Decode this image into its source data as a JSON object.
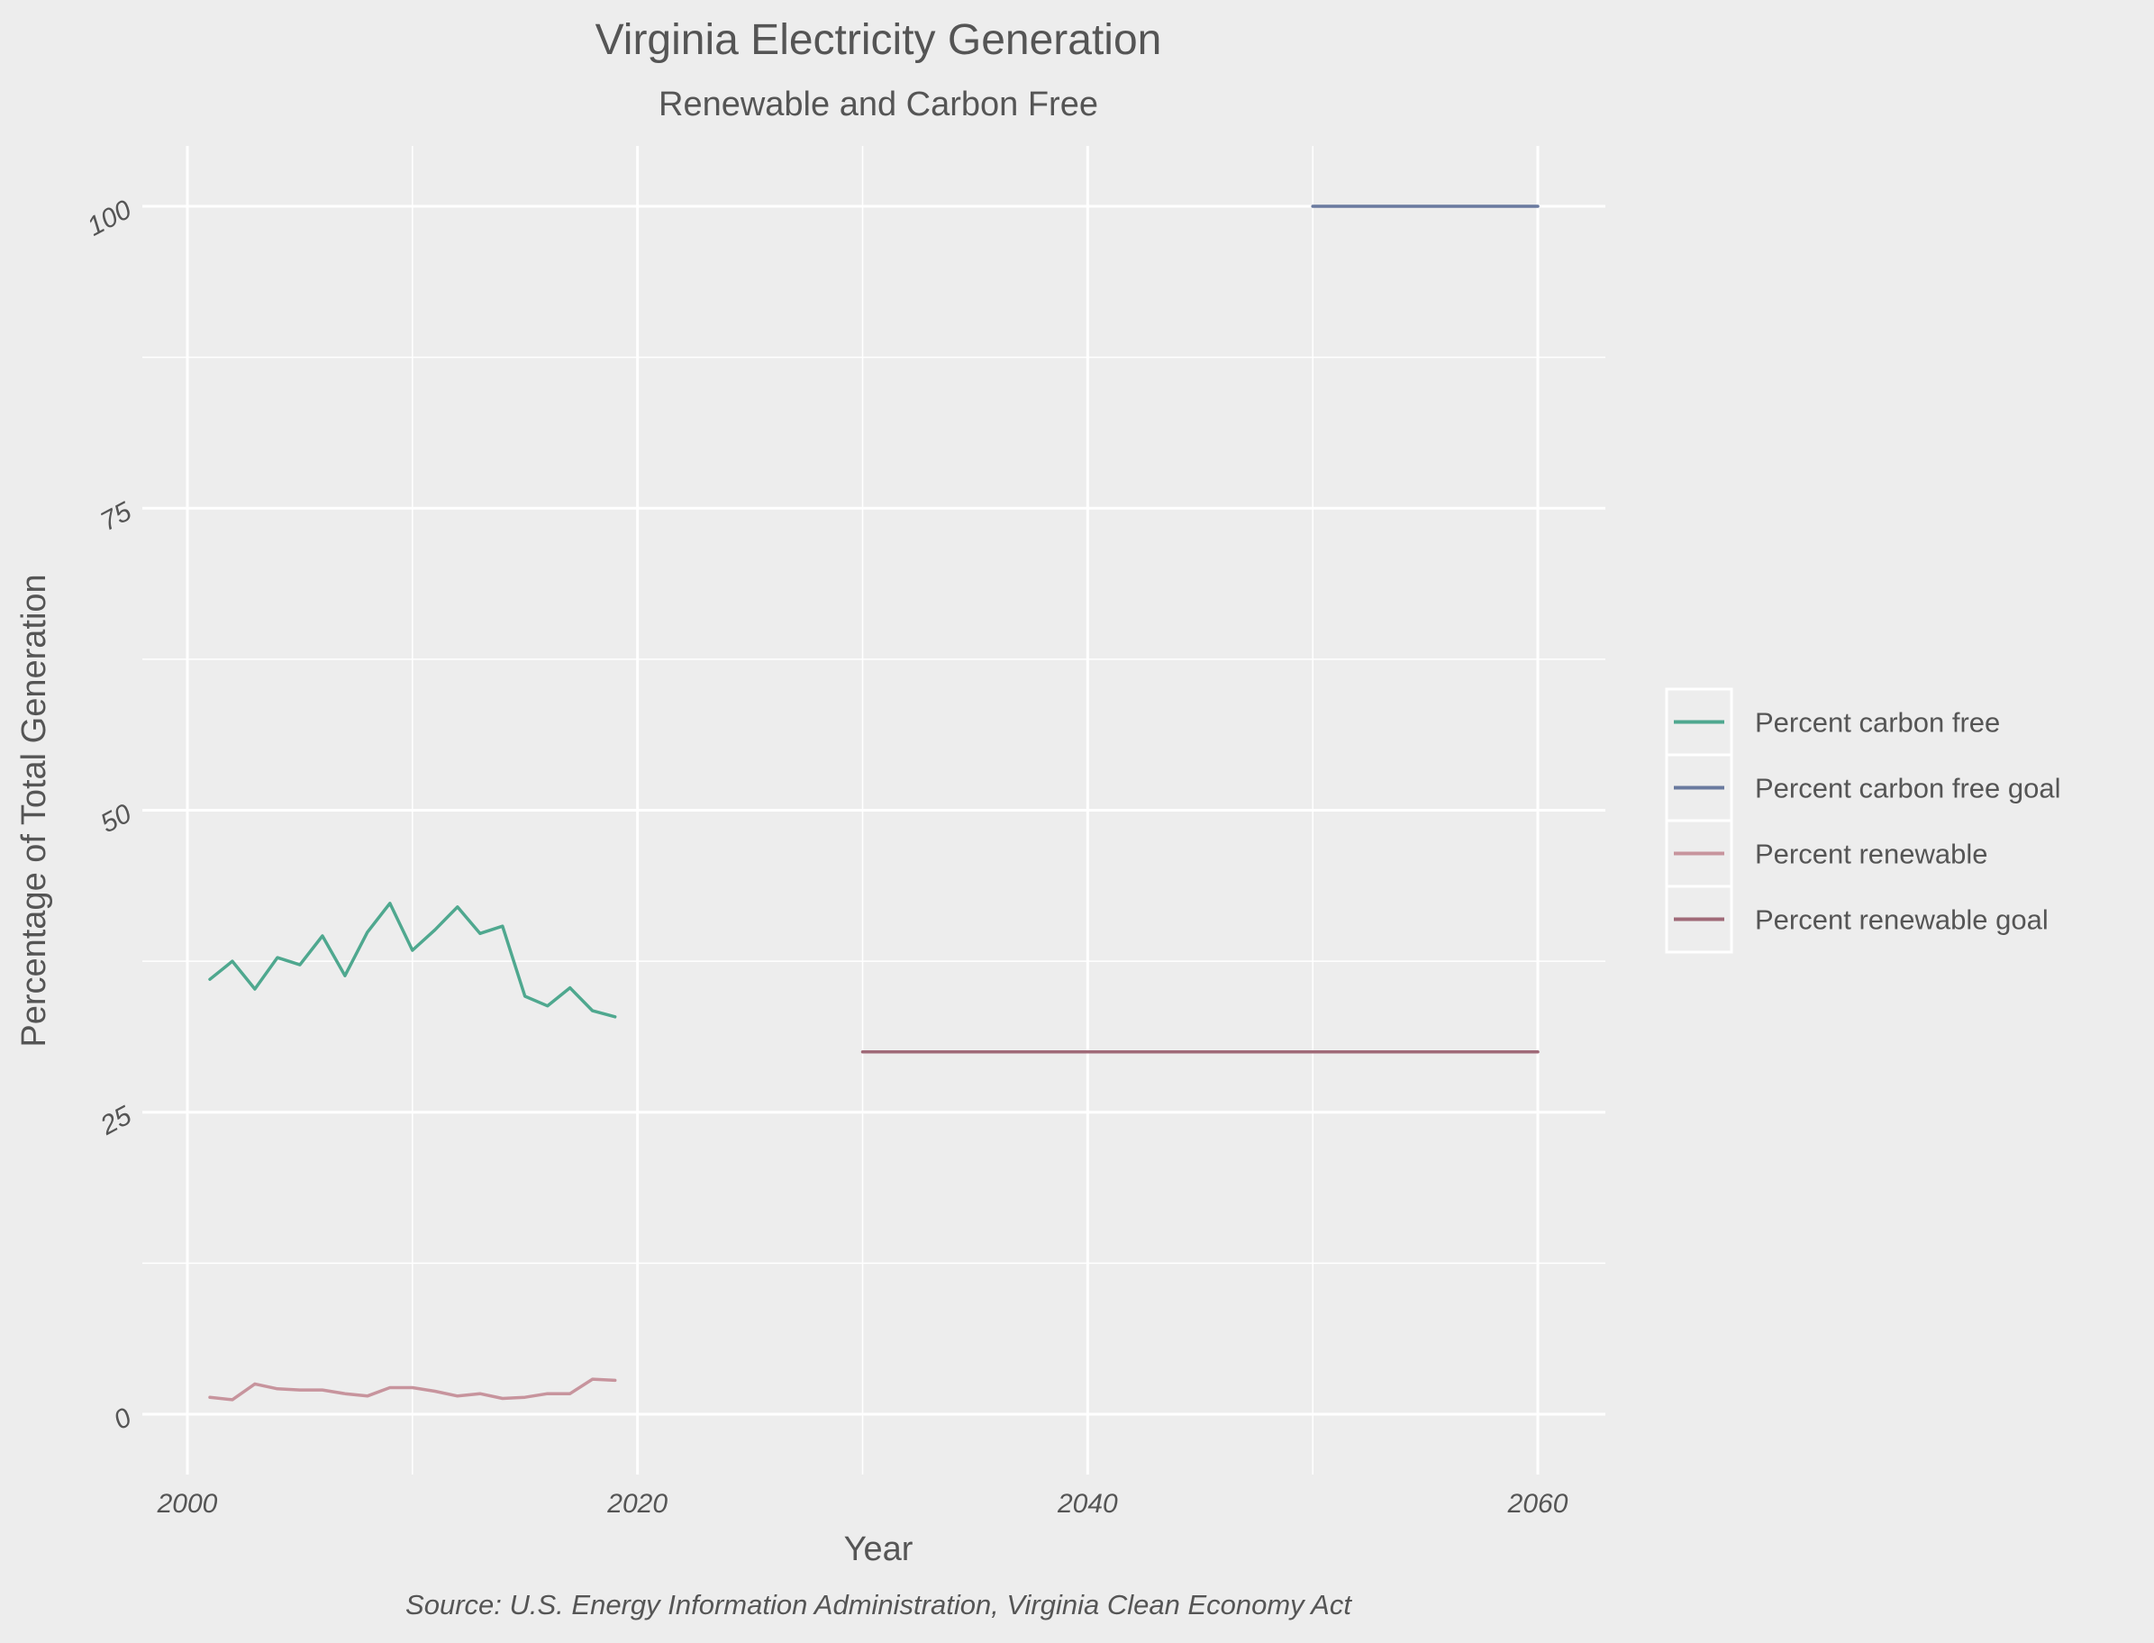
{
  "chart_data": {
    "type": "line",
    "title": "Virginia Electricity Generation",
    "subtitle": "Renewable and Carbon Free",
    "xlabel": "Year",
    "ylabel": "Percentage of Total Generation",
    "caption": "Source: U.S. Energy Information Administration, Virginia Clean Economy Act",
    "xlim": [
      1998,
      2063
    ],
    "ylim": [
      -5,
      105
    ],
    "x_ticks": [
      2000,
      2020,
      2040,
      2060
    ],
    "x_tick_labels": [
      "2000",
      "2020",
      "2040",
      "2060"
    ],
    "y_ticks": [
      0,
      25,
      50,
      75,
      100
    ],
    "y_tick_labels": [
      "0",
      "25",
      "50",
      "75",
      "100"
    ],
    "grid": true,
    "legend_position": "right",
    "series": [
      {
        "name": "Percent carbon free",
        "color": "#4fa88f",
        "x": [
          2001,
          2002,
          2003,
          2004,
          2005,
          2006,
          2007,
          2008,
          2009,
          2010,
          2011,
          2012,
          2013,
          2014,
          2015,
          2016,
          2017,
          2018,
          2019
        ],
        "y": [
          36.0,
          37.5,
          35.2,
          37.8,
          37.2,
          39.6,
          36.3,
          39.9,
          42.3,
          38.4,
          40.1,
          42.0,
          39.8,
          40.4,
          34.6,
          33.8,
          35.3,
          33.4,
          32.9
        ]
      },
      {
        "name": "Percent carbon free goal",
        "color": "#6a7a9f",
        "x": [
          2050,
          2060
        ],
        "y": [
          100,
          100
        ]
      },
      {
        "name": "Percent renewable",
        "color": "#c7949d",
        "x": [
          2001,
          2002,
          2003,
          2004,
          2005,
          2006,
          2007,
          2008,
          2009,
          2010,
          2011,
          2012,
          2013,
          2014,
          2015,
          2016,
          2017,
          2018,
          2019
        ],
        "y": [
          1.4,
          1.2,
          2.5,
          2.1,
          2.0,
          2.0,
          1.7,
          1.5,
          2.2,
          2.2,
          1.9,
          1.5,
          1.7,
          1.3,
          1.4,
          1.7,
          1.7,
          2.9,
          2.8
        ]
      },
      {
        "name": "Percent renewable goal",
        "color": "#a06a78",
        "x": [
          2030,
          2060
        ],
        "y": [
          30,
          30
        ]
      }
    ]
  }
}
